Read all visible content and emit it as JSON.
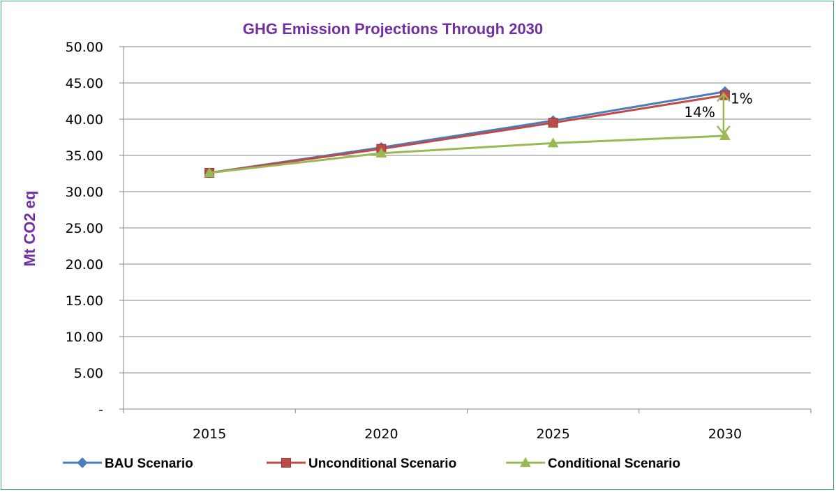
{
  "chart_data": {
    "type": "line",
    "title": "GHG Emission Projections Through 2030",
    "ylabel": "Mt CO2 eq",
    "xlabel": "",
    "categories": [
      "2015",
      "2020",
      "2025",
      "2030"
    ],
    "ylim": [
      0,
      50
    ],
    "yticks": [
      "-",
      "5.00",
      "10.00",
      "15.00",
      "20.00",
      "25.00",
      "30.00",
      "35.00",
      "40.00",
      "45.00",
      "50.00"
    ],
    "grid": true,
    "legend_position": "bottom",
    "series": [
      {
        "name": "BAU Scenario",
        "color": "#4a7ebb",
        "marker": "diamond",
        "values": [
          32.6,
          36.1,
          39.8,
          43.8
        ]
      },
      {
        "name": "Unconditional Scenario",
        "color": "#be4b48",
        "marker": "square",
        "values": [
          32.6,
          35.9,
          39.5,
          43.3
        ]
      },
      {
        "name": "Conditional Scenario",
        "color": "#98b954",
        "marker": "triangle",
        "values": [
          32.6,
          35.3,
          36.7,
          37.7
        ]
      }
    ],
    "annotations": [
      {
        "text": "1%",
        "color": "#98b954"
      },
      {
        "text": "14%",
        "color": "#98b954"
      }
    ]
  }
}
